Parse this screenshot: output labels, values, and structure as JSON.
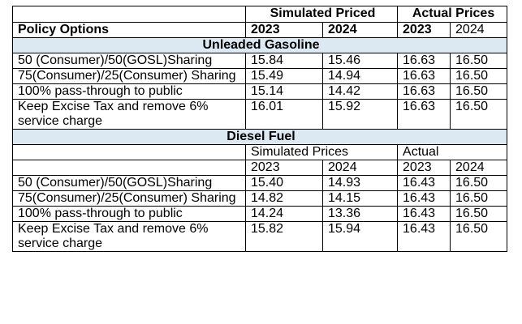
{
  "header": {
    "simulated_label": "Simulated Priced",
    "actual_label": "Actual Prices",
    "policy_label": "Policy Options",
    "year1": "2023",
    "year2": "2024"
  },
  "gasoline": {
    "section_title": "Unleaded Gasoline",
    "rows": [
      {
        "option": "50 (Consumer)/50(GOSL)Sharing",
        "sim2023": "15.84",
        "sim2024": "15.46",
        "act2023": "16.63",
        "act2024": "16.50"
      },
      {
        "option": "75(Consumer)/25(Consumer) Sharing",
        "sim2023": "15.49",
        "sim2024": "14.94",
        "act2023": "16.63",
        "act2024": "16.50"
      },
      {
        "option": "100% pass-through to public",
        "sim2023": "15.14",
        "sim2024": "14.42",
        "act2023": "16.63",
        "act2024": "16.50"
      },
      {
        "option": "Keep Excise Tax and remove 6% service charge",
        "sim2023": "16.01",
        "sim2024": "15.92",
        "act2023": "16.63",
        "act2024": "16.50"
      }
    ]
  },
  "diesel": {
    "section_title": "Diesel Fuel",
    "simulated_label": "Simulated Prices",
    "actual_label": "Actual",
    "year1": "2023",
    "year2": "2024",
    "rows": [
      {
        "option": "50 (Consumer)/50(GOSL)Sharing",
        "sim2023": "15.40",
        "sim2024": "14.93",
        "act2023": "16.43",
        "act2024": "16.50"
      },
      {
        "option": "75(Consumer)/25(Consumer) Sharing",
        "sim2023": "14.82",
        "sim2024": "14.15",
        "act2023": "16.43",
        "act2024": "16.50"
      },
      {
        "option": "100% pass-through to public",
        "sim2023": "14.24",
        "sim2024": "13.36",
        "act2023": "16.43",
        "act2024": "16.50"
      },
      {
        "option": "Keep Excise Tax and remove 6% service charge",
        "sim2023": "15.82",
        "sim2024": "15.94",
        "act2023": "16.43",
        "act2024": "16.50"
      }
    ]
  }
}
